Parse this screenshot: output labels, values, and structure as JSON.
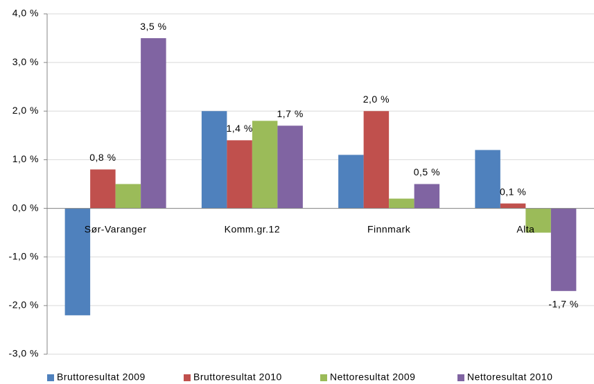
{
  "chart_data": {
    "type": "bar",
    "categories": [
      "Sør-Varanger",
      "Komm.gr.12",
      "Finnmark",
      "Alta"
    ],
    "series": [
      {
        "name": "Bruttoresultat 2009",
        "color": "#4f81bd",
        "values": [
          -2.2,
          2.0,
          1.1,
          1.2
        ]
      },
      {
        "name": "Bruttoresultat 2010",
        "color": "#c0504d",
        "values": [
          0.8,
          1.4,
          2.0,
          0.1
        ],
        "value_labels": [
          "0,8 %",
          "1,4 %",
          "2,0 %",
          "0,1 %"
        ]
      },
      {
        "name": "Nettoresultat 2009",
        "color": "#9bbb59",
        "values": [
          0.5,
          1.8,
          0.2,
          -0.5
        ]
      },
      {
        "name": "Nettoresultat 2010",
        "color": "#8064a2",
        "values": [
          3.5,
          1.7,
          0.5,
          -1.7
        ],
        "value_labels": [
          "3,5 %",
          "1,7 %",
          "0,5 %",
          "-1,7 %"
        ]
      }
    ],
    "ylim": [
      -3,
      4
    ],
    "yticks": [
      {
        "value": -3,
        "label": "-3,0 %"
      },
      {
        "value": -2,
        "label": "-2,0 %"
      },
      {
        "value": -1,
        "label": "-1,0 %"
      },
      {
        "value": 0,
        "label": "0,0 %"
      },
      {
        "value": 1,
        "label": "1,0 %"
      },
      {
        "value": 2,
        "label": "2,0 %"
      },
      {
        "value": 3,
        "label": "3,0 %"
      },
      {
        "value": 4,
        "label": "4,0 %"
      }
    ],
    "grid": true,
    "legend": "bottom"
  }
}
